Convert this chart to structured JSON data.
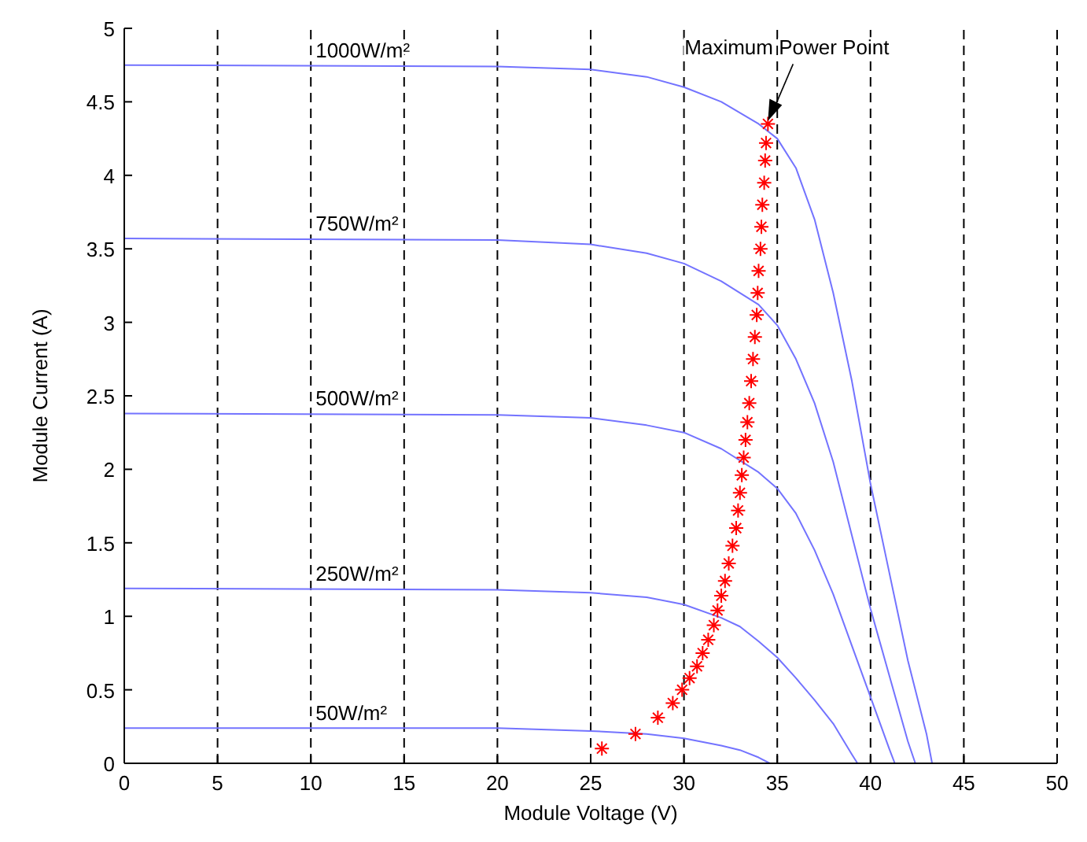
{
  "chart_data": {
    "type": "line",
    "xlabel": "Module Voltage (V)",
    "ylabel": "Module Current (A)",
    "xlim": [
      0,
      50
    ],
    "ylim": [
      0,
      5
    ],
    "xticks": [
      0,
      5,
      10,
      15,
      20,
      25,
      30,
      35,
      40,
      45,
      50
    ],
    "yticks": [
      0,
      0.5,
      1,
      1.5,
      2,
      2.5,
      3,
      3.5,
      4,
      4.5,
      5
    ],
    "grid": "x",
    "marker": "none",
    "line_style": "solid",
    "series": [
      {
        "name": "1000W/m²",
        "color": "#7373ff",
        "x": [
          0,
          20,
          25,
          28,
          30,
          32,
          34,
          35,
          36,
          37,
          38,
          39,
          40,
          41,
          42,
          43,
          43.3
        ],
        "values": [
          4.75,
          4.74,
          4.72,
          4.67,
          4.6,
          4.5,
          4.35,
          4.25,
          4.05,
          3.7,
          3.2,
          2.6,
          1.9,
          1.3,
          0.7,
          0.2,
          0
        ]
      },
      {
        "name": "750W/m²",
        "color": "#7373ff",
        "x": [
          0,
          20,
          25,
          28,
          30,
          32,
          34,
          35,
          36,
          37,
          38,
          39,
          40,
          41,
          42,
          42.4
        ],
        "values": [
          3.57,
          3.56,
          3.53,
          3.47,
          3.4,
          3.28,
          3.12,
          2.98,
          2.75,
          2.45,
          2.05,
          1.55,
          1.05,
          0.6,
          0.15,
          0
        ]
      },
      {
        "name": "500W/m²",
        "color": "#7373ff",
        "x": [
          0,
          20,
          25,
          28,
          30,
          32,
          34,
          35,
          36,
          37,
          38,
          39,
          40,
          41,
          41.3
        ],
        "values": [
          2.38,
          2.37,
          2.35,
          2.3,
          2.25,
          2.14,
          1.98,
          1.87,
          1.7,
          1.45,
          1.15,
          0.8,
          0.45,
          0.1,
          0
        ]
      },
      {
        "name": "250W/m²",
        "color": "#7373ff",
        "x": [
          0,
          20,
          25,
          28,
          30,
          32,
          33,
          34,
          35,
          36,
          37,
          38,
          39,
          39.3
        ],
        "values": [
          1.19,
          1.18,
          1.16,
          1.13,
          1.08,
          0.99,
          0.93,
          0.83,
          0.72,
          0.58,
          0.43,
          0.27,
          0.06,
          0
        ]
      },
      {
        "name": "50W/m²",
        "color": "#7373ff",
        "x": [
          0,
          20,
          25,
          28,
          30,
          32,
          33,
          34,
          34.6
        ],
        "values": [
          0.24,
          0.24,
          0.22,
          0.2,
          0.17,
          0.12,
          0.09,
          0.04,
          0
        ]
      },
      {
        "type": "scatter",
        "marker": "cross",
        "color": "#ff0000",
        "x": [
          25.6,
          27.4,
          28.6,
          29.4,
          29.9,
          30.3,
          30.7,
          31.0,
          31.3,
          31.6,
          31.8,
          32.0,
          32.2,
          32.4,
          32.6,
          32.8,
          32.9,
          33.0,
          33.1,
          33.2,
          33.3,
          33.4,
          33.5,
          33.6,
          33.7,
          33.8,
          33.9,
          33.95,
          34.0,
          34.1,
          34.15,
          34.2,
          34.3,
          34.35,
          34.4,
          34.5
        ],
        "values": [
          0.1,
          0.2,
          0.31,
          0.41,
          0.5,
          0.58,
          0.66,
          0.75,
          0.84,
          0.94,
          1.04,
          1.14,
          1.24,
          1.36,
          1.48,
          1.6,
          1.72,
          1.84,
          1.96,
          2.08,
          2.2,
          2.32,
          2.45,
          2.6,
          2.75,
          2.9,
          3.05,
          3.2,
          3.35,
          3.5,
          3.65,
          3.8,
          3.95,
          4.1,
          4.22,
          4.35
        ]
      }
    ],
    "annotations": [
      "Maximum Power Point"
    ]
  }
}
